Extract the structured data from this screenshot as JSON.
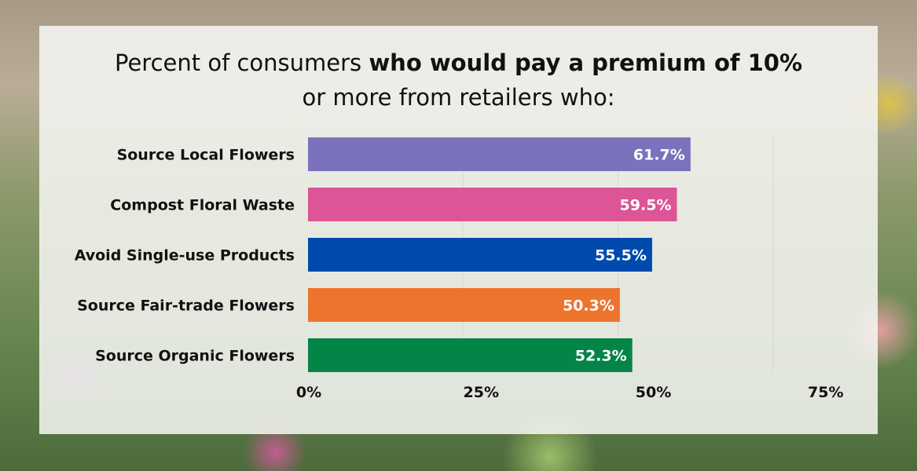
{
  "chart_data": {
    "type": "bar",
    "orientation": "horizontal",
    "title_parts": [
      "Percent of consumers ",
      "who would pay a premium of 10%",
      "or more from retailers who:"
    ],
    "categories": [
      "Source Local Flowers",
      "Compost Floral Waste",
      "Avoid Single-use Products",
      "Source Fair-trade Flowers",
      "Source Organic Flowers"
    ],
    "values": [
      61.7,
      59.5,
      55.5,
      50.3,
      52.3
    ],
    "value_labels": [
      "61.7%",
      "59.5%",
      "55.5%",
      "50.3%",
      "52.3%"
    ],
    "colors": [
      "#7b72bd",
      "#dc5597",
      "#004aad",
      "#ed742d",
      "#038548"
    ],
    "xticks": [
      0,
      25,
      50,
      75
    ],
    "xtick_labels": [
      "0%",
      "25%",
      "50%",
      "75%"
    ],
    "xlim": [
      0,
      75
    ],
    "grid": true
  }
}
